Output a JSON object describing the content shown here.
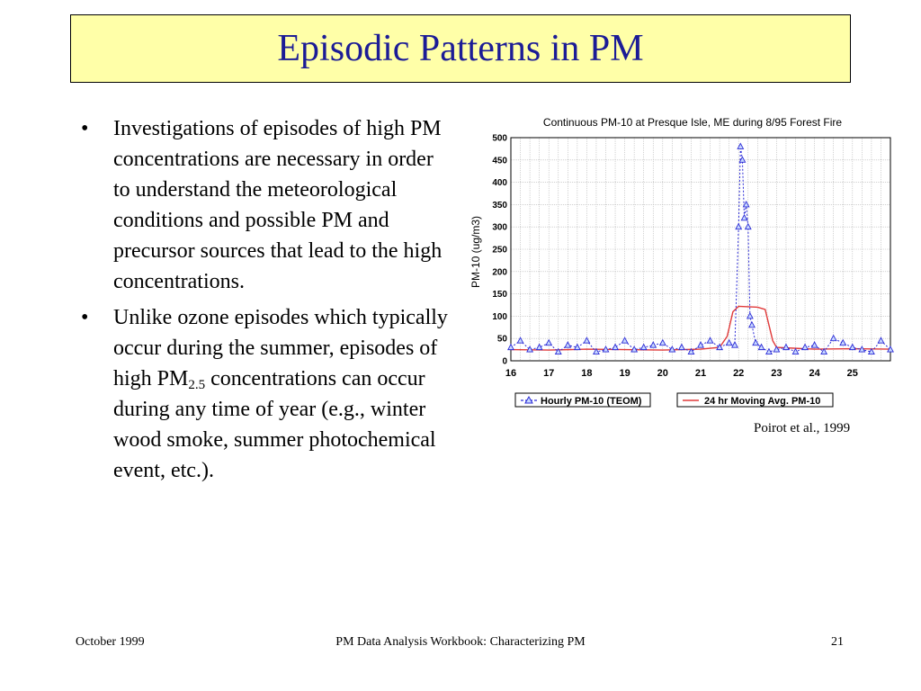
{
  "slide": {
    "title": "Episodic Patterns in PM",
    "bullets": [
      {
        "text": "Investigations of episodes of high PM concentrations are necessary in order to understand the meteorological conditions and possible PM and precursor sources that lead to the high concentrations."
      },
      {
        "text_before": "Unlike ozone episodes which typically occur during the summer, episodes of high PM",
        "subscript": "2.5",
        "text_after": " concentrations can occur during any time of year (e.g., winter wood smoke, summer photochemical event, etc.)."
      }
    ],
    "credit": "Poirot et al., 1999",
    "footer": {
      "left": "October 1999",
      "center": "PM Data Analysis Workbook: Characterizing PM",
      "right": "21"
    }
  },
  "chart_data": {
    "type": "line",
    "title": "Continuous PM-10 at Presque Isle, ME during 8/95 Forest Fire",
    "xlabel": "",
    "ylabel": "PM-10 (ug/m3)",
    "xlim": [
      16,
      26
    ],
    "ylim": [
      0,
      500
    ],
    "x_ticks": [
      "16",
      "17",
      "18",
      "19",
      "20",
      "21",
      "22",
      "23",
      "24",
      "25"
    ],
    "y_ticks": [
      "500",
      "450",
      "400",
      "350",
      "300",
      "250",
      "200",
      "150",
      "100",
      "50",
      "0"
    ],
    "grid": true,
    "legend_position": "bottom",
    "series": [
      {
        "name": "Hourly PM-10 (TEOM)",
        "color": "#2b2bd6",
        "x": [
          16.0,
          16.25,
          16.5,
          16.75,
          17.0,
          17.25,
          17.5,
          17.75,
          18.0,
          18.25,
          18.5,
          18.75,
          19.0,
          19.25,
          19.5,
          19.75,
          20.0,
          20.25,
          20.5,
          20.75,
          21.0,
          21.25,
          21.5,
          21.75,
          21.9,
          22.0,
          22.05,
          22.1,
          22.15,
          22.2,
          22.25,
          22.3,
          22.35,
          22.45,
          22.6,
          22.8,
          23.0,
          23.25,
          23.5,
          23.75,
          24.0,
          24.25,
          24.5,
          24.75,
          25.0,
          25.25,
          25.5,
          25.75,
          26.0
        ],
        "values": [
          30,
          45,
          25,
          30,
          40,
          20,
          35,
          30,
          45,
          20,
          25,
          30,
          45,
          25,
          30,
          35,
          40,
          25,
          30,
          20,
          35,
          45,
          30,
          40,
          35,
          300,
          480,
          450,
          320,
          350,
          300,
          100,
          80,
          40,
          30,
          20,
          25,
          30,
          20,
          30,
          35,
          20,
          50,
          40,
          30,
          25,
          20,
          45,
          25
        ]
      },
      {
        "name": "24 hr Moving Avg. PM-10",
        "color": "#e03a3a",
        "x": [
          16.0,
          17.0,
          18.0,
          19.0,
          20.0,
          21.0,
          21.5,
          21.7,
          21.85,
          22.0,
          22.5,
          22.7,
          22.8,
          22.9,
          23.0,
          24.0,
          25.0,
          26.0
        ],
        "values": [
          25,
          24,
          26,
          25,
          24,
          26,
          30,
          55,
          110,
          122,
          120,
          115,
          80,
          45,
          30,
          26,
          27,
          26
        ]
      }
    ]
  }
}
